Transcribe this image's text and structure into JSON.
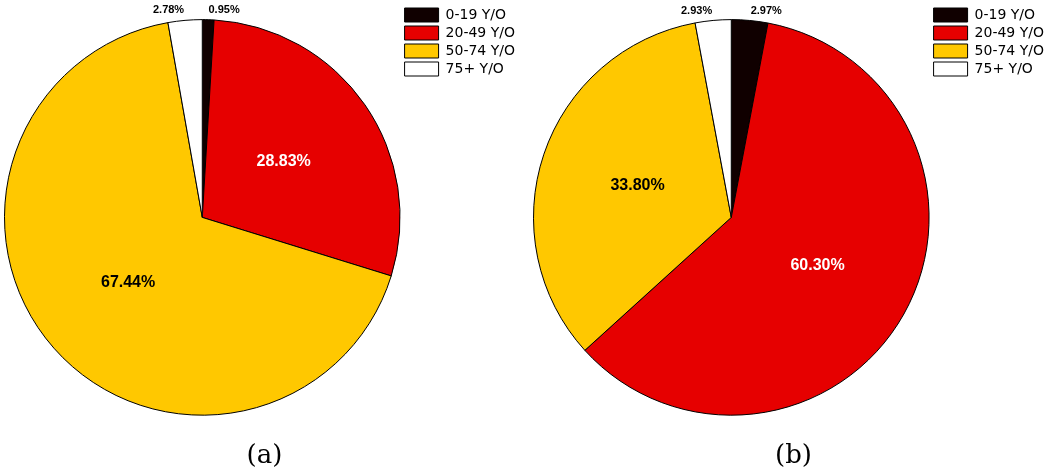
{
  "chart_data": [
    {
      "type": "pie",
      "title": "(a)",
      "categories": [
        "0-19 Y/O",
        "20-49 Y/O",
        "50-74 Y/O",
        "75+ Y/O"
      ],
      "values": [
        0.95,
        28.83,
        67.44,
        2.78
      ],
      "value_labels": [
        "0.95%",
        "28.83%",
        "67.44%",
        "2.78%"
      ],
      "colors": [
        "#100000",
        "#e60000",
        "#ffc800",
        "#ffffff"
      ],
      "legend": "top right"
    },
    {
      "type": "pie",
      "title": "(b)",
      "categories": [
        "0-19 Y/O",
        "20-49 Y/O",
        "50-74 Y/O",
        "75+ Y/O"
      ],
      "values": [
        2.97,
        60.3,
        33.8,
        2.93
      ],
      "value_labels": [
        "2.97%",
        "60.30%",
        "33.80%",
        "2.93%"
      ],
      "colors": [
        "#100000",
        "#e60000",
        "#ffc800",
        "#ffffff"
      ],
      "legend": "top right"
    }
  ]
}
